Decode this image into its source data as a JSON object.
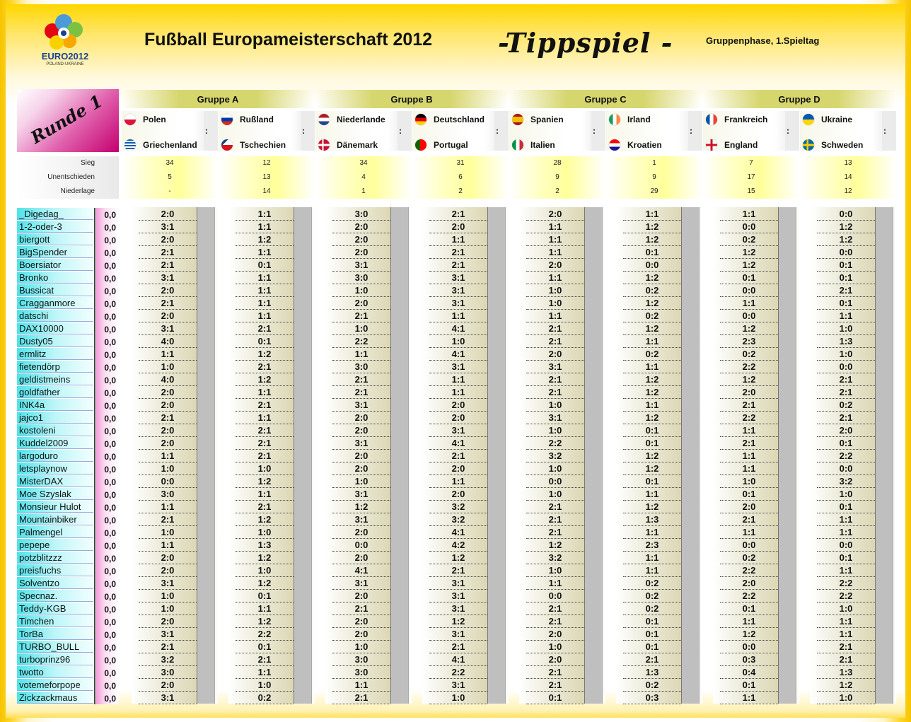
{
  "header": {
    "logo_label": "EURO2012",
    "logo_sub": "POLAND-UKRAINE",
    "title": "Fußball Europameisterschaft 2012",
    "tipp": "-Tippspiel -",
    "subtitle": "Gruppenphase, 1.Spieltag",
    "round": "Runde 1"
  },
  "groups": [
    "Gruppe A",
    "Gruppe B",
    "Gruppe C",
    "Gruppe D"
  ],
  "matches": [
    {
      "home": "Polen",
      "away": "Griechenland",
      "home_flag": "poland-flag-icon",
      "away_flag": "greece-flag-icon"
    },
    {
      "home": "Rußland",
      "away": "Tschechien",
      "home_flag": "russia-flag-icon",
      "away_flag": "czech-flag-icon"
    },
    {
      "home": "Niederlande",
      "away": "Dänemark",
      "home_flag": "netherlands-flag-icon",
      "away_flag": "denmark-flag-icon"
    },
    {
      "home": "Deutschland",
      "away": "Portugal",
      "home_flag": "germany-flag-icon",
      "away_flag": "portugal-flag-icon"
    },
    {
      "home": "Spanien",
      "away": "Italien",
      "home_flag": "spain-flag-icon",
      "away_flag": "italy-flag-icon"
    },
    {
      "home": "Irland",
      "away": "Kroatien",
      "home_flag": "ireland-flag-icon",
      "away_flag": "croatia-flag-icon"
    },
    {
      "home": "Frankreich",
      "away": "England",
      "home_flag": "france-flag-icon",
      "away_flag": "england-flag-icon"
    },
    {
      "home": "Ukraine",
      "away": "Schweden",
      "home_flag": "ukraine-flag-icon",
      "away_flag": "sweden-flag-icon"
    }
  ],
  "colon": ":",
  "stats": {
    "labels": [
      "Sieg",
      "Unentschieden",
      "Niederlage"
    ],
    "values": [
      [
        "34",
        "5",
        "-"
      ],
      [
        "12",
        "13",
        "14"
      ],
      [
        "34",
        "4",
        "1"
      ],
      [
        "31",
        "6",
        "2"
      ],
      [
        "28",
        "9",
        "2"
      ],
      [
        "1",
        "9",
        "29"
      ],
      [
        "7",
        "17",
        "15"
      ],
      [
        "13",
        "14",
        "12"
      ]
    ]
  },
  "players": [
    {
      "name": "_Digedag_",
      "points": "0,0",
      "tips": [
        "2:0",
        "1:1",
        "3:0",
        "2:1",
        "2:0",
        "1:1",
        "1:1",
        "0:0"
      ]
    },
    {
      "name": "1-2-oder-3",
      "points": "0,0",
      "tips": [
        "3:1",
        "1:1",
        "2:0",
        "2:0",
        "1:1",
        "1:2",
        "0:0",
        "1:2"
      ]
    },
    {
      "name": "biergott",
      "points": "0,0",
      "tips": [
        "2:0",
        "1:2",
        "2:0",
        "1:1",
        "1:1",
        "1:2",
        "0:2",
        "1:2"
      ]
    },
    {
      "name": "BigSpender",
      "points": "0,0",
      "tips": [
        "2:1",
        "1:1",
        "2:0",
        "2:1",
        "1:1",
        "0:1",
        "1:2",
        "0:0"
      ]
    },
    {
      "name": "Boersiator",
      "points": "0,0",
      "tips": [
        "2:1",
        "0:1",
        "3:1",
        "2:1",
        "2:0",
        "0:0",
        "1:2",
        "0:1"
      ]
    },
    {
      "name": "Bronko",
      "points": "0,0",
      "tips": [
        "3:1",
        "1:1",
        "3:0",
        "3:1",
        "1:1",
        "1:2",
        "0:1",
        "0:1"
      ]
    },
    {
      "name": "Bussicat",
      "points": "0,0",
      "tips": [
        "2:0",
        "1:1",
        "1:0",
        "3:1",
        "1:0",
        "0:2",
        "0:0",
        "2:1"
      ]
    },
    {
      "name": "Cragganmore",
      "points": "0,0",
      "tips": [
        "2:1",
        "1:1",
        "2:0",
        "3:1",
        "1:0",
        "1:2",
        "1:1",
        "0:1"
      ]
    },
    {
      "name": "datschi",
      "points": "0,0",
      "tips": [
        "2:0",
        "1:1",
        "2:1",
        "1:1",
        "1:1",
        "0:2",
        "0:0",
        "1:1"
      ]
    },
    {
      "name": "DAX10000",
      "points": "0,0",
      "tips": [
        "3:1",
        "2:1",
        "1:0",
        "4:1",
        "2:1",
        "1:2",
        "1:2",
        "1:0"
      ]
    },
    {
      "name": "Dusty05",
      "points": "0,0",
      "tips": [
        "4:0",
        "0:1",
        "2:2",
        "1:0",
        "2:1",
        "1:1",
        "2:3",
        "1:3"
      ]
    },
    {
      "name": "ermlitz",
      "points": "0,0",
      "tips": [
        "1:1",
        "1:2",
        "1:1",
        "4:1",
        "2:0",
        "0:2",
        "0:2",
        "1:0"
      ]
    },
    {
      "name": "fietendörp",
      "points": "0,0",
      "tips": [
        "1:0",
        "2:1",
        "3:0",
        "3:1",
        "3:1",
        "1:1",
        "2:2",
        "0:0"
      ]
    },
    {
      "name": "geldistmeins",
      "points": "0,0",
      "tips": [
        "4:0",
        "1:2",
        "2:1",
        "1:1",
        "2:1",
        "1:2",
        "1:2",
        "2:1"
      ]
    },
    {
      "name": "goldfather",
      "points": "0,0",
      "tips": [
        "2:0",
        "1:1",
        "2:1",
        "1:1",
        "2:1",
        "1:2",
        "2:0",
        "2:1"
      ]
    },
    {
      "name": "INK4a",
      "points": "0,0",
      "tips": [
        "2:0",
        "2:1",
        "3:1",
        "2:0",
        "1:0",
        "1:1",
        "2:1",
        "0:2"
      ]
    },
    {
      "name": "jajco1",
      "points": "0,0",
      "tips": [
        "2:1",
        "1:1",
        "2:0",
        "2:0",
        "3:1",
        "1:2",
        "2:2",
        "2:1"
      ]
    },
    {
      "name": "kostoleni",
      "points": "0,0",
      "tips": [
        "2:0",
        "2:1",
        "2:0",
        "3:1",
        "1:0",
        "0:1",
        "1:1",
        "2:0"
      ]
    },
    {
      "name": "Kuddel2009",
      "points": "0,0",
      "tips": [
        "2:0",
        "2:1",
        "3:1",
        "4:1",
        "2:2",
        "0:1",
        "2:1",
        "0:1"
      ]
    },
    {
      "name": "largoduro",
      "points": "0,0",
      "tips": [
        "1:1",
        "2:1",
        "2:0",
        "2:1",
        "3:2",
        "1:2",
        "1:1",
        "2:2"
      ]
    },
    {
      "name": "letsplaynow",
      "points": "0,0",
      "tips": [
        "1:0",
        "1:0",
        "2:0",
        "2:0",
        "1:0",
        "1:2",
        "1:1",
        "0:0"
      ]
    },
    {
      "name": "MisterDAX",
      "points": "0,0",
      "tips": [
        "0:0",
        "1:2",
        "1:0",
        "1:1",
        "0:0",
        "0:1",
        "1:0",
        "3:2"
      ]
    },
    {
      "name": "Moe Szyslak",
      "points": "0,0",
      "tips": [
        "3:0",
        "1:1",
        "3:1",
        "2:0",
        "1:0",
        "1:1",
        "0:1",
        "1:0"
      ]
    },
    {
      "name": "Monsieur Hulot",
      "points": "0,0",
      "tips": [
        "1:1",
        "2:1",
        "1:2",
        "3:2",
        "2:1",
        "1:2",
        "2:0",
        "0:1"
      ]
    },
    {
      "name": "Mountainbiker",
      "points": "0,0",
      "tips": [
        "2:1",
        "1:2",
        "3:1",
        "3:2",
        "2:1",
        "1:3",
        "2:1",
        "1:1"
      ]
    },
    {
      "name": "Palmengel",
      "points": "0,0",
      "tips": [
        "1:0",
        "1:0",
        "2:0",
        "4:1",
        "2:1",
        "1:1",
        "1:1",
        "1:1"
      ]
    },
    {
      "name": "pepepe",
      "points": "0,0",
      "tips": [
        "1:1",
        "1:3",
        "0:0",
        "4:2",
        "1:2",
        "2:3",
        "0:0",
        "0:0"
      ]
    },
    {
      "name": "potzblitzzz",
      "points": "0,0",
      "tips": [
        "2:0",
        "1:2",
        "2:0",
        "1:2",
        "3:2",
        "1:1",
        "0:2",
        "0:1"
      ]
    },
    {
      "name": "preisfuchs",
      "points": "0,0",
      "tips": [
        "2:0",
        "1:0",
        "4:1",
        "2:1",
        "1:0",
        "1:1",
        "2:2",
        "1:1"
      ]
    },
    {
      "name": "Solventzo",
      "points": "0,0",
      "tips": [
        "3:1",
        "1:2",
        "3:1",
        "3:1",
        "1:1",
        "0:2",
        "2:0",
        "2:2"
      ]
    },
    {
      "name": "Specnaz.",
      "points": "0,0",
      "tips": [
        "1:0",
        "0:1",
        "2:0",
        "3:1",
        "0:0",
        "0:2",
        "2:2",
        "2:2"
      ]
    },
    {
      "name": "Teddy-KGB",
      "points": "0,0",
      "tips": [
        "1:0",
        "1:1",
        "2:1",
        "3:1",
        "2:1",
        "0:2",
        "0:1",
        "1:0"
      ]
    },
    {
      "name": "Timchen",
      "points": "0,0",
      "tips": [
        "2:0",
        "1:2",
        "2:0",
        "1:2",
        "2:1",
        "0:1",
        "1:1",
        "1:1"
      ]
    },
    {
      "name": "TorBa",
      "points": "0,0",
      "tips": [
        "3:1",
        "2:2",
        "2:0",
        "3:1",
        "2:0",
        "0:1",
        "1:2",
        "1:1"
      ]
    },
    {
      "name": "TURBO_BULL",
      "points": "0,0",
      "tips": [
        "2:1",
        "0:1",
        "1:0",
        "2:1",
        "1:0",
        "0:1",
        "0:0",
        "2:1"
      ]
    },
    {
      "name": "turboprinz96",
      "points": "0,0",
      "tips": [
        "3:2",
        "2:1",
        "3:0",
        "4:1",
        "2:0",
        "2:1",
        "0:3",
        "2:1"
      ]
    },
    {
      "name": "twotto",
      "points": "0,0",
      "tips": [
        "3:0",
        "1:1",
        "3:0",
        "2:2",
        "2:1",
        "1:3",
        "0:4",
        "1:3"
      ]
    },
    {
      "name": "votemeforpope",
      "points": "0,0",
      "tips": [
        "2:0",
        "1:0",
        "1:1",
        "3:1",
        "2:1",
        "0:2",
        "0:1",
        "1:2"
      ]
    },
    {
      "name": "Zickzackmaus",
      "points": "0,0",
      "tips": [
        "3:1",
        "0:2",
        "2:1",
        "1:0",
        "0:1",
        "0:3",
        "1:1",
        "1:0"
      ]
    }
  ]
}
